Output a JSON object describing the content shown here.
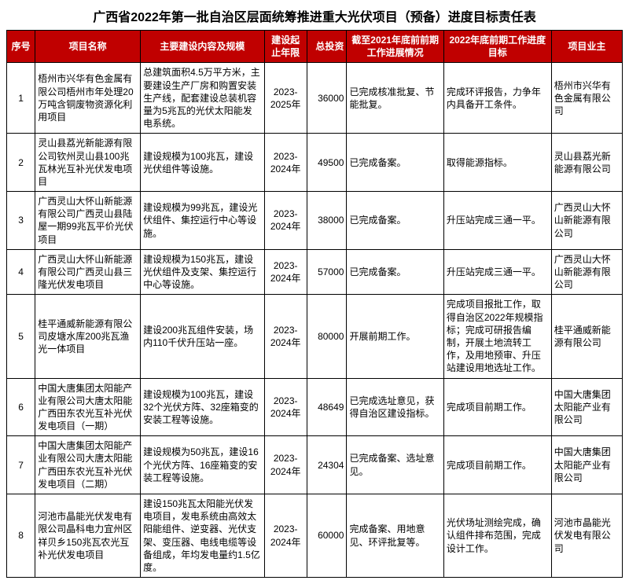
{
  "title": "广西省2022年第一批自治区层面统筹推进重大光伏项目（预备）进度目标责任表",
  "headers": {
    "idx": "序号",
    "name": "项目名称",
    "scope": "主要建设内容及规模",
    "period": "建设起止年限",
    "invest": "总投资",
    "prog21": "截至2021年底前前期工作进展情况",
    "prog22": "2022年底前期工作进度目标",
    "owner": "项目业主"
  },
  "colors": {
    "header_bg": "#c00000",
    "header_fg": "#ffffff",
    "border": "#000000",
    "page_bg": "#ffffff",
    "text": "#000000"
  },
  "rows": [
    {
      "idx": "1",
      "name": "梧州市兴华有色金属有限公司梧州市年处理20万吨含铜废物资源化利用项目",
      "scope": "总建筑面积4.5万平方米，主要建设生产厂房和购置安装生产线，配套建设总装机容量为5兆瓦的光伏太阳能发电系统。",
      "period": "2023-2025年",
      "invest": "36000",
      "prog21": "已完成核准批复、节能批复。",
      "prog22": "完成环评报告，力争年内具备开工条件。",
      "owner": "梧州市兴华有色金属有限公司"
    },
    {
      "idx": "2",
      "name": "灵山县荔光新能源有限公司钦州灵山县100兆瓦林光互补光伏发电项目",
      "scope": "建设规模为100兆瓦，建设光伏组件等设施。",
      "period": "2023-2024年",
      "invest": "49500",
      "prog21": "已完成备案。",
      "prog22": "取得能源指标。",
      "owner": "灵山县荔光新能源有限公司"
    },
    {
      "idx": "3",
      "name": "广西灵山大怀山新能源有限公司广西灵山县陆屋一期99兆瓦平价光伏项目",
      "scope": "建设规模为99兆瓦，建设光伏组件、集控运行中心等设施。",
      "period": "2023-2024年",
      "invest": "38000",
      "prog21": "已完成备案。",
      "prog22": "升压站完成三通一平。",
      "owner": "广西灵山大怀山新能源有限公司"
    },
    {
      "idx": "4",
      "name": "广西灵山大怀山新能源有限公司广西灵山县三隆光伏发电项目",
      "scope": "建设规模为150兆瓦，建设光伏组件及支架、集控运行中心等设施。",
      "period": "2023-2024年",
      "invest": "57000",
      "prog21": "已完成备案。",
      "prog22": "升压站完成三通一平。",
      "owner": "广西灵山大怀山新能源有限公司"
    },
    {
      "idx": "5",
      "name": "桂平通威新能源有限公司皮塘水库200兆瓦渔光一体项目",
      "scope": "建设200兆瓦组件安装，场内110千伏升压站一座。",
      "period": "2023-2024年",
      "invest": "80000",
      "prog21": "开展前期工作。",
      "prog22": "完成项目报批工作，取得自治区2022年规模指标；完成可研报告编制，开展土地流转工作，及用地预审、升压站建设用地选址工作。",
      "owner": "桂平通威新能源有限公司"
    },
    {
      "idx": "6",
      "name": "中国大唐集团太阳能产业有限公司大唐太阳能广西田东农光互补光伏发电项目（一期）",
      "scope": "建设规模为100兆瓦，建设32个光伏方阵、32座箱变的安装工程等设施。",
      "period": "2023-2024年",
      "invest": "48649",
      "prog21": "已完成选址意见，获得自治区建设指标。",
      "prog22": "完成项目前期工作。",
      "owner": "中国大唐集团太阳能产业有限公司"
    },
    {
      "idx": "7",
      "name": "中国大唐集团太阳能产业有限公司大唐太阳能广西田东农光互补光伏发电项目（二期）",
      "scope": "建设规模为50兆瓦，建设16个光伏方阵、16座箱变的安装工程等设施。",
      "period": "2023-2024年",
      "invest": "24304",
      "prog21": "已完成备案、选址意见。",
      "prog22": "完成项目前期工作。",
      "owner": "中国大唐集团太阳能产业有限公司"
    },
    {
      "idx": "8",
      "name": "河池市晶能光伏发电有限公司晶科电力宜州区祥贝乡150兆瓦农光互补光伏发电项目",
      "scope": "建设150兆瓦太阳能光伏发电项目，发电系统由高效太阳能组件、逆变器、光伏支架、变压器、电线电缆等设备组成，年均发电量约1.5亿度。",
      "period": "2023-2024年",
      "invest": "60000",
      "prog21": "完成备案、用地意见、环评批复等。",
      "prog22": "光伏场址测绘完成，确认组件排布范围，完成设计工作。",
      "owner": "河池市晶能光伏发电有限公司"
    }
  ]
}
